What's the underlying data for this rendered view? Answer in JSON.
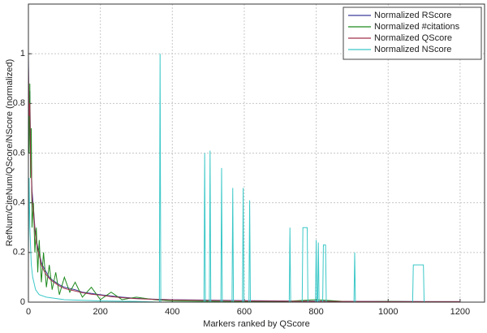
{
  "chart_data": {
    "type": "line",
    "xlabel": "Markers ranked by QScore",
    "ylabel": "RefNum/CiteNum/QScore/NScore (normalized)",
    "x": [
      0,
      2,
      4,
      6,
      8,
      10,
      14,
      18,
      22,
      26,
      30,
      36,
      42,
      50,
      58,
      66,
      76,
      86,
      100,
      115,
      130,
      150,
      175,
      200,
      230,
      260,
      300,
      350,
      400,
      500,
      600,
      700,
      800,
      900,
      1000,
      1100,
      1200
    ],
    "series": [
      {
        "name": "Normalized RScore",
        "color": "#3b3b9b",
        "values": [
          1.0,
          0.7,
          0.85,
          0.6,
          0.55,
          0.45,
          0.38,
          0.3,
          0.25,
          0.22,
          0.2,
          0.16,
          0.14,
          0.12,
          0.1,
          0.09,
          0.08,
          0.07,
          0.06,
          0.055,
          0.05,
          0.04,
          0.035,
          0.03,
          0.025,
          0.02,
          0.015,
          0.012,
          0.01,
          0.008,
          0.006,
          0.005,
          0.004,
          0.003,
          0.003,
          0.002,
          0.002
        ]
      },
      {
        "name": "Normalized #citations",
        "color": "#1e8a1e",
        "values": [
          0.9,
          0.6,
          0.88,
          0.5,
          0.7,
          0.3,
          0.4,
          0.2,
          0.3,
          0.12,
          0.25,
          0.08,
          0.2,
          0.06,
          0.15,
          0.05,
          0.12,
          0.03,
          0.1,
          0.04,
          0.08,
          0.02,
          0.06,
          0.01,
          0.04,
          0.01,
          0.02,
          0.01,
          0.005,
          0.003,
          0.002,
          0.002,
          0.01,
          0.001,
          0.003,
          0.001,
          0.001
        ]
      },
      {
        "name": "Normalized QScore",
        "color": "#a0324a",
        "values": [
          0.95,
          0.75,
          0.8,
          0.58,
          0.52,
          0.42,
          0.36,
          0.29,
          0.24,
          0.21,
          0.19,
          0.15,
          0.13,
          0.11,
          0.095,
          0.085,
          0.075,
          0.065,
          0.055,
          0.05,
          0.045,
          0.038,
          0.032,
          0.028,
          0.022,
          0.018,
          0.014,
          0.011,
          0.009,
          0.007,
          0.005,
          0.004,
          0.003,
          0.003,
          0.002,
          0.002,
          0.002
        ]
      },
      {
        "name": "Normalized NScore",
        "color": "#3cc8c8",
        "x": [
          0,
          2,
          4,
          8,
          12,
          20,
          30,
          50,
          100,
          200,
          300,
          364,
          366,
          368,
          488,
          490,
          492,
          503,
          505,
          507,
          535,
          537,
          539,
          566,
          568,
          570,
          595,
          597,
          599,
          613,
          615,
          617,
          725,
          727,
          729,
          761,
          763,
          775,
          777,
          798,
          800,
          802,
          804,
          806,
          808,
          818,
          820,
          826,
          828,
          905,
          907,
          909,
          1068,
          1070,
          1098,
          1100,
          1250
        ],
        "values": [
          0.2,
          0.5,
          0.3,
          0.15,
          0.1,
          0.05,
          0.03,
          0.02,
          0.01,
          0.005,
          0.003,
          0,
          1,
          0,
          0,
          0.6,
          0,
          0,
          0.61,
          0,
          0,
          0.54,
          0,
          0,
          0.46,
          0,
          0,
          0.46,
          0,
          0,
          0.41,
          0,
          0,
          0.3,
          0,
          0,
          0.3,
          0.3,
          0,
          0,
          0.25,
          0,
          0,
          0.24,
          0,
          0,
          0.23,
          0.23,
          0,
          0,
          0.2,
          0,
          0,
          0.15,
          0.15,
          0,
          0
        ]
      }
    ],
    "xlim": [
      0,
      1268
    ],
    "xticks": [
      0,
      200,
      400,
      600,
      800,
      1000,
      1200
    ],
    "ylim": [
      0,
      1.2
    ],
    "yticks": [
      0,
      0.2,
      0.4,
      0.6,
      0.8,
      1
    ],
    "grid": true,
    "legend": "top-right"
  }
}
